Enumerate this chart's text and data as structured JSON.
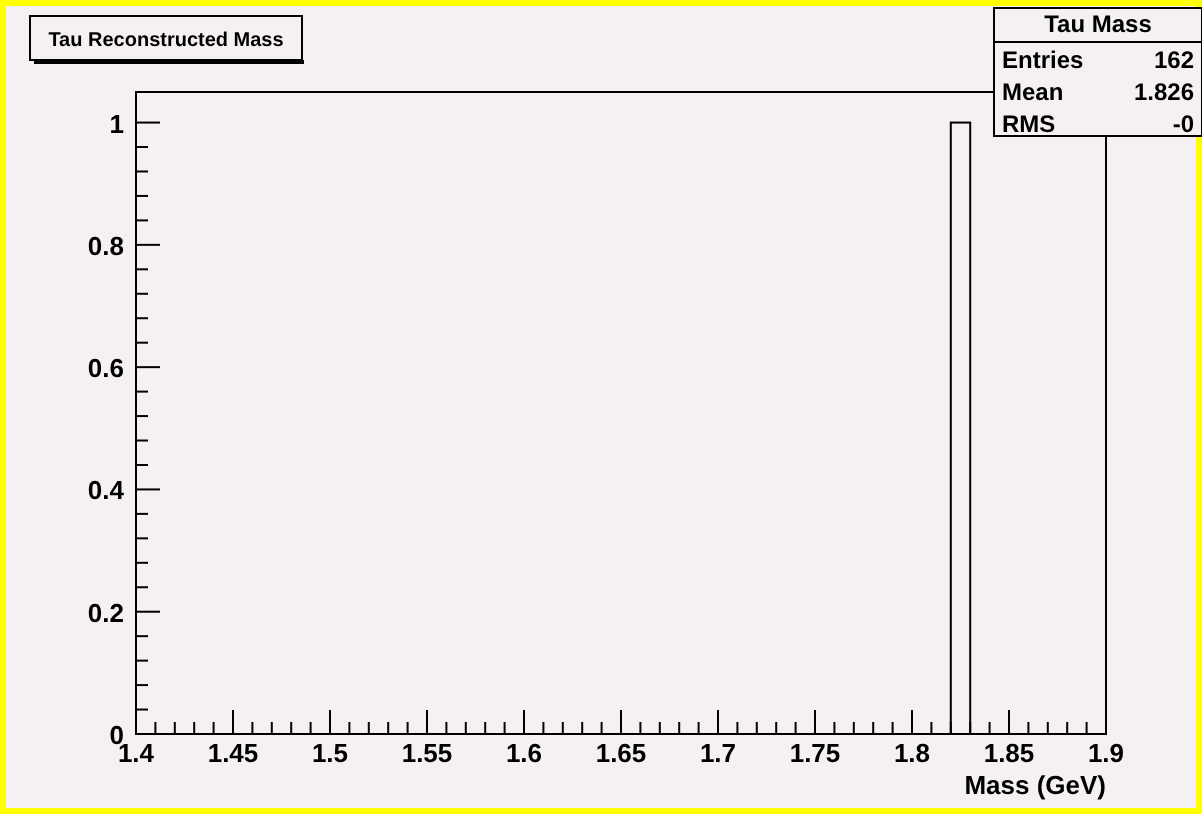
{
  "chart_data": {
    "type": "histogram",
    "title": "Tau Reconstructed Mass",
    "xlabel": "Mass (GeV)",
    "bins": [
      1.82,
      1.83
    ],
    "values": [
      1
    ],
    "color": "#000000",
    "xlim": [
      1.4,
      1.9
    ],
    "ylim": [
      0,
      1.05
    ],
    "xticks": [
      1.4,
      {
        "value": 1.41,
        "label": null
      },
      {
        "value": 1.42,
        "label": null
      },
      {
        "value": 1.43,
        "label": null
      },
      {
        "value": 1.44,
        "label": null
      },
      1.45,
      {
        "value": 1.46,
        "label": null
      },
      {
        "value": 1.47,
        "label": null
      },
      {
        "value": 1.48,
        "label": null
      },
      {
        "value": 1.49,
        "label": null
      },
      1.5,
      {
        "value": 1.51,
        "label": null
      },
      {
        "value": 1.52,
        "label": null
      },
      {
        "value": 1.53,
        "label": null
      },
      {
        "value": 1.54,
        "label": null
      },
      1.55,
      {
        "value": 1.56,
        "label": null
      },
      {
        "value": 1.57,
        "label": null
      },
      {
        "value": 1.58,
        "label": null
      },
      {
        "value": 1.59,
        "label": null
      },
      1.6,
      {
        "value": 1.61,
        "label": null
      },
      {
        "value": 1.62,
        "label": null
      },
      {
        "value": 1.63,
        "label": null
      },
      {
        "value": 1.64,
        "label": null
      },
      1.65,
      {
        "value": 1.66,
        "label": null
      },
      {
        "value": 1.67,
        "label": null
      },
      {
        "value": 1.68,
        "label": null
      },
      {
        "value": 1.69,
        "label": null
      },
      1.7,
      {
        "value": 1.71,
        "label": null
      },
      {
        "value": 1.72,
        "label": null
      },
      {
        "value": 1.73,
        "label": null
      },
      {
        "value": 1.74,
        "label": null
      },
      1.75,
      {
        "value": 1.76,
        "label": null
      },
      {
        "value": 1.77,
        "label": null
      },
      {
        "value": 1.78,
        "label": null
      },
      {
        "value": 1.79,
        "label": null
      },
      1.8,
      {
        "value": 1.81,
        "label": null
      },
      {
        "value": 1.82,
        "label": null
      },
      {
        "value": 1.83,
        "label": null
      },
      {
        "value": 1.84,
        "label": null
      },
      1.85,
      {
        "value": 1.86,
        "label": null
      },
      {
        "value": 1.87,
        "label": null
      },
      {
        "value": 1.88,
        "label": null
      },
      {
        "value": 1.89,
        "label": null
      },
      1.9
    ],
    "yticks": [
      0,
      {
        "value": 0.04,
        "label": null
      },
      {
        "value": 0.08,
        "label": null
      },
      {
        "value": 0.12,
        "label": null
      },
      {
        "value": 0.16,
        "label": null
      },
      0.2,
      {
        "value": 0.24,
        "label": null
      },
      {
        "value": 0.28,
        "label": null
      },
      {
        "value": 0.32,
        "label": null
      },
      {
        "value": 0.36,
        "label": null
      },
      0.4,
      {
        "value": 0.44,
        "label": null
      },
      {
        "value": 0.48,
        "label": null
      },
      {
        "value": 0.52,
        "label": null
      },
      {
        "value": 0.56,
        "label": null
      },
      0.6,
      {
        "value": 0.64,
        "label": null
      },
      {
        "value": 0.68,
        "label": null
      },
      {
        "value": 0.72,
        "label": null
      },
      {
        "value": 0.76,
        "label": null
      },
      0.8,
      {
        "value": 0.84,
        "label": null
      },
      {
        "value": 0.88,
        "label": null
      },
      {
        "value": 0.92,
        "label": null
      },
      {
        "value": 0.96,
        "label": null
      },
      1
    ],
    "annotations": [
      "Tau Mass",
      "Entries 162",
      "Mean 1.826",
      "RMS -0"
    ]
  }
}
